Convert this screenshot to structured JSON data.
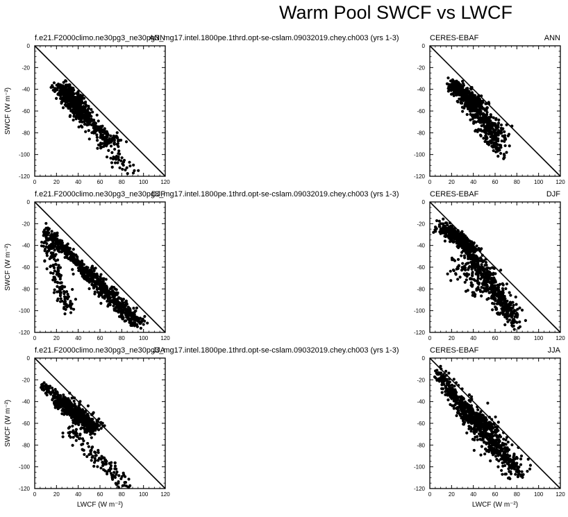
{
  "figure": {
    "title": "Warm Pool SWCF vs LWCF"
  },
  "chart_data": [
    {
      "type": "scatter",
      "row": 0,
      "col": 0,
      "left_label": "f.e21.F2000climo.ne30pg3_ne30pg3_mg17.intel.1800pe.1thrd.opt-se-cslam.09032019.chey.ch003 (yrs 1-3)",
      "right_label": "ANN",
      "xlabel": "",
      "ylabel": "SWCF (W m⁻²)",
      "xlim": [
        0,
        120
      ],
      "ylim": [
        -120,
        0
      ],
      "xticks": [
        0,
        20,
        40,
        60,
        80,
        100,
        120
      ],
      "yticks": [
        0,
        -20,
        -40,
        -60,
        -80,
        -100,
        -120
      ],
      "reference_line": [
        [
          0,
          0
        ],
        [
          120,
          -120
        ]
      ],
      "clusters": [
        {
          "x": [
            25,
            45
          ],
          "y": [
            -38,
            -62
          ],
          "spread": [
            7,
            5
          ],
          "n": 500
        },
        {
          "x": [
            40,
            75
          ],
          "y": [
            -60,
            -90
          ],
          "spread": [
            8,
            6
          ],
          "n": 180
        },
        {
          "x": [
            60,
            90
          ],
          "y": [
            -85,
            -118
          ],
          "spread": [
            6,
            5
          ],
          "n": 60
        }
      ]
    },
    {
      "type": "scatter",
      "row": 0,
      "col": 1,
      "left_label": "CERES-EBAF",
      "right_label": "ANN",
      "xlabel": "",
      "ylabel": "",
      "xlim": [
        0,
        120
      ],
      "ylim": [
        -120,
        0
      ],
      "xticks": [
        0,
        20,
        40,
        60,
        80,
        100,
        120
      ],
      "yticks": [
        0,
        -20,
        -40,
        -60,
        -80,
        -100,
        -120
      ],
      "reference_line": [
        [
          0,
          0
        ],
        [
          120,
          -120
        ]
      ],
      "clusters": [
        {
          "x": [
            20,
            45
          ],
          "y": [
            -35,
            -55
          ],
          "spread": [
            6,
            5
          ],
          "n": 380
        },
        {
          "x": [
            35,
            65
          ],
          "y": [
            -50,
            -85
          ],
          "spread": [
            7,
            8
          ],
          "n": 320
        },
        {
          "x": [
            45,
            68
          ],
          "y": [
            -75,
            -102
          ],
          "spread": [
            5,
            6
          ],
          "n": 60
        }
      ]
    },
    {
      "type": "scatter",
      "row": 1,
      "col": 0,
      "left_label": "f.e21.F2000climo.ne30pg3_ne30pg3_mg17.intel.1800pe.1thrd.opt-se-cslam.09032019.chey.ch003 (yrs 1-3)",
      "right_label": "DJF",
      "xlabel": "",
      "ylabel": "SWCF (W m⁻²)",
      "xlim": [
        0,
        120
      ],
      "ylim": [
        -120,
        0
      ],
      "xticks": [
        0,
        20,
        40,
        60,
        80,
        100,
        120
      ],
      "yticks": [
        0,
        -20,
        -40,
        -60,
        -80,
        -100,
        -120
      ],
      "reference_line": [
        [
          0,
          0
        ],
        [
          120,
          -120
        ]
      ],
      "clusters": [
        {
          "x": [
            10,
            45
          ],
          "y": [
            -24,
            -62
          ],
          "spread": [
            4,
            4
          ],
          "n": 260
        },
        {
          "x": [
            10,
            30
          ],
          "y": [
            -32,
            -100
          ],
          "spread": [
            5,
            6
          ],
          "n": 160
        },
        {
          "x": [
            45,
            95
          ],
          "y": [
            -62,
            -112
          ],
          "spread": [
            7,
            5
          ],
          "n": 480
        }
      ]
    },
    {
      "type": "scatter",
      "row": 1,
      "col": 1,
      "left_label": "CERES-EBAF",
      "right_label": "DJF",
      "xlabel": "",
      "ylabel": "",
      "xlim": [
        0,
        120
      ],
      "ylim": [
        -120,
        0
      ],
      "xticks": [
        0,
        20,
        40,
        60,
        80,
        100,
        120
      ],
      "yticks": [
        0,
        -20,
        -40,
        -60,
        -80,
        -100,
        -120
      ],
      "reference_line": [
        [
          0,
          0
        ],
        [
          120,
          -120
        ]
      ],
      "clusters": [
        {
          "x": [
            10,
            40
          ],
          "y": [
            -22,
            -45
          ],
          "spread": [
            5,
            5
          ],
          "n": 400
        },
        {
          "x": [
            35,
            78
          ],
          "y": [
            -45,
            -110
          ],
          "spread": [
            7,
            8
          ],
          "n": 480
        },
        {
          "x": [
            20,
            45
          ],
          "y": [
            -55,
            -80
          ],
          "spread": [
            7,
            8
          ],
          "n": 70
        }
      ]
    },
    {
      "type": "scatter",
      "row": 2,
      "col": 0,
      "left_label": "f.e21.F2000climo.ne30pg3_ne30pg3_mg17.intel.1800pe.1thrd.opt-se-cslam.09032019.chey.ch003 (yrs 1-3)",
      "right_label": "JJA",
      "xlabel": "LWCF (W m⁻²)",
      "ylabel": "SWCF (W m⁻²)",
      "xlim": [
        0,
        120
      ],
      "ylim": [
        -120,
        0
      ],
      "xticks": [
        0,
        20,
        40,
        60,
        80,
        100,
        120
      ],
      "yticks": [
        0,
        -20,
        -40,
        -60,
        -80,
        -100,
        -120
      ],
      "reference_line": [
        [
          0,
          0
        ],
        [
          120,
          -120
        ]
      ],
      "clusters": [
        {
          "x": [
            8,
            25
          ],
          "y": [
            -24,
            -40
          ],
          "spread": [
            4,
            4
          ],
          "n": 60
        },
        {
          "x": [
            22,
            55
          ],
          "y": [
            -38,
            -65
          ],
          "spread": [
            7,
            6
          ],
          "n": 500
        },
        {
          "x": [
            30,
            85
          ],
          "y": [
            -65,
            -118
          ],
          "spread": [
            7,
            6
          ],
          "n": 130
        }
      ]
    },
    {
      "type": "scatter",
      "row": 2,
      "col": 1,
      "left_label": "CERES-EBAF",
      "right_label": "JJA",
      "xlabel": "LWCF (W m⁻²)",
      "ylabel": "",
      "xlim": [
        0,
        120
      ],
      "ylim": [
        -120,
        0
      ],
      "xticks": [
        0,
        20,
        40,
        60,
        80,
        100,
        120
      ],
      "yticks": [
        0,
        -20,
        -40,
        -60,
        -80,
        -100,
        -120
      ],
      "reference_line": [
        [
          0,
          0
        ],
        [
          120,
          -120
        ]
      ],
      "clusters": [
        {
          "x": [
            8,
            30
          ],
          "y": [
            -14,
            -45
          ],
          "spread": [
            5,
            5
          ],
          "n": 200
        },
        {
          "x": [
            30,
            82
          ],
          "y": [
            -45,
            -105
          ],
          "spread": [
            8,
            9
          ],
          "n": 520
        },
        {
          "x": [
            30,
            60
          ],
          "y": [
            -50,
            -65
          ],
          "spread": [
            7,
            5
          ],
          "n": 180
        }
      ]
    }
  ]
}
